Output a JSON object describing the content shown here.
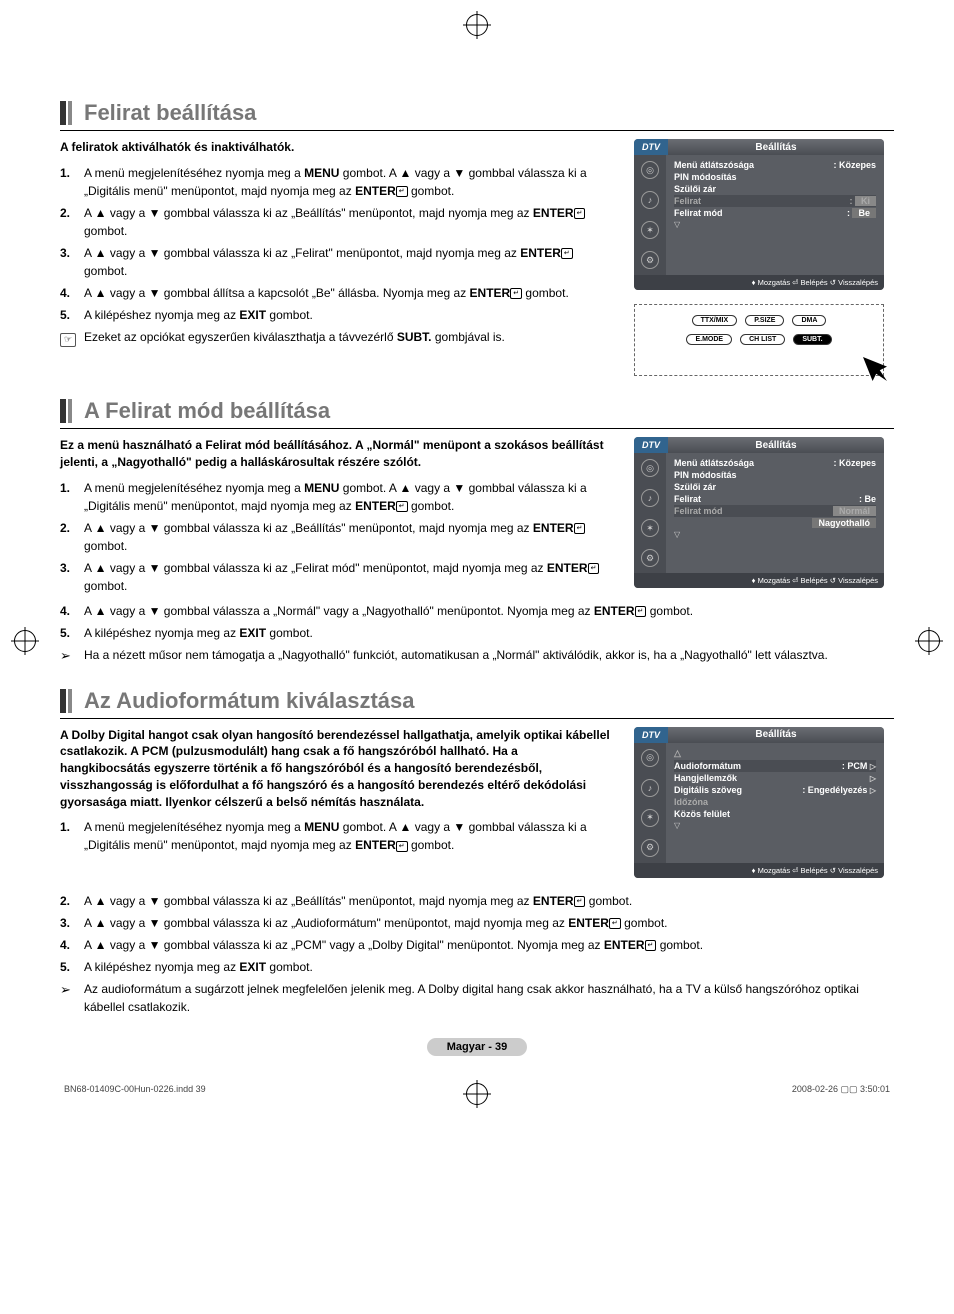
{
  "page": {
    "doc_id": "BN68-01409C-00Hun-0226.indd   39",
    "timestamp": "2008-02-26   ▢▢ 3:50:01",
    "page_pill": "Magyar -  39"
  },
  "sections": {
    "s1": {
      "title": "Felirat beállítása",
      "intro": "A feliratok aktiválhatók és inaktiválhatók.",
      "steps": [
        "A menü megjelenítéséhez nyomja meg a <b>MENU</b> gombot. A ▲ vagy a ▼ gombbal válassza ki a „Digitális menü\" menüpontot, majd nyomja meg az <b>ENTER</b><span class='enter-icon'>↵</span> gombot.",
        "A ▲ vagy a ▼ gombbal válassza ki az „Beállítás\" menüpontot, majd nyomja meg az <b>ENTER</b><span class='enter-icon'>↵</span> gombot.",
        "A ▲ vagy a ▼ gombbal válassza ki az „Felirat\" menüpontot, majd nyomja meg az <b>ENTER</b><span class='enter-icon'>↵</span> gombot.",
        "A ▲ vagy a ▼ gombbal állítsa a kapcsolót „Be\" állásba. Nyomja meg az <b>ENTER</b><span class='enter-icon'>↵</span> gombot.",
        "A kilépéshez nyomja meg az <b>EXIT</b> gombot."
      ],
      "note": "Ezeket az opciókat egyszerűen kiválaszthatja a távvezérlő <b>SUBT.</b> gombjával is.",
      "osd": {
        "dtv": "DTV",
        "title": "Beállítás",
        "rows": [
          {
            "label": "Menü átlátszósága",
            "val": ": Közepes"
          },
          {
            "label": "PIN módosítás",
            "val": ""
          },
          {
            "label": "Szülői zár",
            "val": ""
          },
          {
            "label": "Felirat",
            "val": ":",
            "box": "Ki",
            "dim": true,
            "sel": true
          },
          {
            "label": "Felirat mód",
            "val": ":",
            "box": "Be"
          }
        ],
        "footer": "♦ Mozgatás   ⏎ Belépés   ↺ Visszalépés"
      }
    },
    "s2": {
      "title": "A Felirat mód beállítása",
      "intro": "Ez a menü használható a Felirat mód beállításához. A „Normál\" menüpont a szokásos beállítást jelenti, a „Nagyothalló\" pedig a halláskárosultak részére szólót.",
      "steps": [
        "A menü megjelenítéséhez nyomja meg a <b>MENU</b> gombot. A ▲ vagy a ▼ gombbal válassza ki a „Digitális menü\" menüpontot, majd nyomja meg az <b>ENTER</b><span class='enter-icon'>↵</span> gombot.",
        "A ▲ vagy a ▼ gombbal válassza ki az „Beállítás\" menüpontot, majd nyomja meg az <b>ENTER</b><span class='enter-icon'>↵</span> gombot.",
        "A ▲ vagy a ▼ gombbal válassza ki az „Felirat mód\" menüpontot, majd nyomja meg az <b>ENTER</b><span class='enter-icon'>↵</span> gombot.",
        "A ▲ vagy a ▼ gombbal válassza a „Normál\" vagy a „Nagyothalló\" menüpontot. Nyomja meg az <b>ENTER</b><span class='enter-icon'>↵</span> gombot.",
        "A kilépéshez nyomja meg az <b>EXIT</b> gombot."
      ],
      "note": "Ha a nézett műsor nem támogatja a „Nagyothalló\" funkciót, automatikusan a „Normál\" aktiválódik, akkor is, ha a „Nagyothalló\" lett választva.",
      "osd": {
        "dtv": "DTV",
        "title": "Beállítás",
        "rows": [
          {
            "label": "Menü átlátszósága",
            "val": ": Közepes"
          },
          {
            "label": "PIN módosítás",
            "val": ""
          },
          {
            "label": "Szülői zár",
            "val": ""
          },
          {
            "label": "Felirat",
            "val": ": Be"
          },
          {
            "label": "Felirat mód",
            "val": "",
            "box": "Normál",
            "dim": true,
            "sel": true
          },
          {
            "label": "",
            "val": "",
            "box": "Nagyothalló"
          }
        ],
        "footer": "♦ Mozgatás   ⏎ Belépés   ↺ Visszalépés"
      }
    },
    "s3": {
      "title": "Az Audioformátum kiválasztása",
      "intro": "A Dolby Digital hangot csak olyan hangosító berendezéssel hallgathatja, amelyik optikai kábellel csatlakozik. A PCM (pulzusmodulált) hang csak a fő hangszóróból hallható. Ha a hangkibocsátás egyszerre történik a fő hangszóróból és a hangosító berendezésből, visszhangosság is előfordulhat a fő hangszóró és a hangosító berendezés eltérő dekódolási gyorsasága miatt. Ilyenkor célszerű a belső némítás használata.",
      "steps": [
        "A menü megjelenítéséhez nyomja meg a <b>MENU</b> gombot. A ▲ vagy a ▼ gombbal válassza ki a „Digitális menü\" menüpontot, majd nyomja meg az <b>ENTER</b><span class='enter-icon'>↵</span> gombot.",
        "A ▲ vagy a ▼ gombbal válassza ki az „Beállítás\" menüpontot, majd nyomja meg az <b>ENTER</b><span class='enter-icon'>↵</span> gombot.",
        "A ▲ vagy a ▼ gombbal válassza ki az „Audioformátum\" menüpontot, majd nyomja meg az <b>ENTER</b><span class='enter-icon'>↵</span> gombot.",
        "A ▲ vagy a ▼ gombbal válassza ki az „PCM\" vagy a „Dolby Digital\" menüpontot. Nyomja meg az <b>ENTER</b><span class='enter-icon'>↵</span> gombot.",
        "A kilépéshez nyomja meg az <b>EXIT</b> gombot."
      ],
      "note": "Az audioformátum a sugárzott jelnek megfelelően jelenik meg. A Dolby digital hang csak akkor használható, ha a TV a külső hangszóróhoz optikai kábellel csatlakozik.",
      "osd": {
        "dtv": "DTV",
        "title": "Beállítás",
        "rows": [
          {
            "label": "△",
            "val": "",
            "dim": true
          },
          {
            "label": "Audioformátum",
            "val": ": PCM",
            "sel": true,
            "tri": true
          },
          {
            "label": "Hangjellemzők",
            "val": "",
            "tri": true
          },
          {
            "label": "Digitális szöveg",
            "val": ": Engedélyezés",
            "tri": true
          },
          {
            "label": "Időzóna",
            "val": "",
            "dim": true
          },
          {
            "label": "Közös felület",
            "val": ""
          }
        ],
        "footer": "♦ Mozgatás   ⏎ Belépés   ↺ Visszalépés"
      }
    }
  },
  "remote": {
    "row1": [
      "TTX/MIX",
      "P.SIZE",
      "DMA"
    ],
    "row2": [
      "E.MODE",
      "CH LIST",
      "SUBT."
    ]
  }
}
